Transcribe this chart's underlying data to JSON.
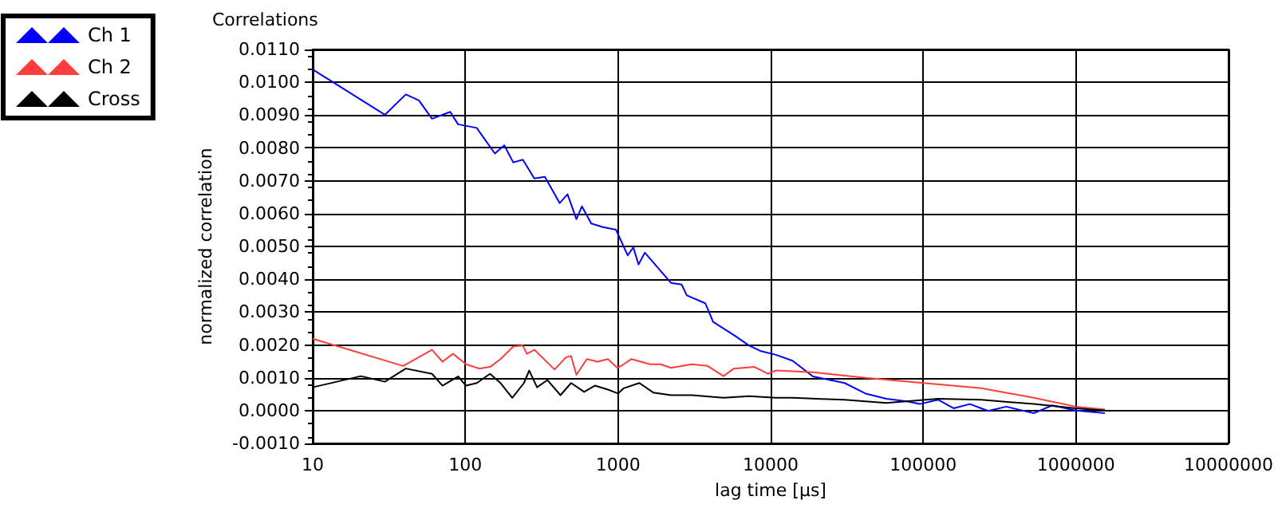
{
  "chart_data": {
    "type": "line",
    "title": "Correlations",
    "xlabel": "lag time [µs]",
    "ylabel": "normalized correlation",
    "log": "x",
    "grid": true,
    "legend": "top left",
    "marker": "none",
    "line_style": "solid",
    "xlim": [
      10,
      10000000
    ],
    "xticks": [
      10,
      100,
      1000,
      10000,
      100000,
      1000000,
      10000000
    ],
    "ylim": [
      -0.001,
      0.011
    ],
    "yticks": [
      {
        "value": -0.001,
        "label": "-0.0010"
      },
      {
        "value": 0,
        "label": "0.0000"
      },
      {
        "value": 0.001,
        "label": "0.0010"
      },
      {
        "value": 0.002,
        "label": "0.0020"
      },
      {
        "value": 0.003,
        "label": "0.0030"
      },
      {
        "value": 0.004,
        "label": "0.0040"
      },
      {
        "value": 0.005,
        "label": "0.0050"
      },
      {
        "value": 0.006,
        "label": "0.0060"
      },
      {
        "value": 0.007,
        "label": "0.0070"
      },
      {
        "value": 0.008,
        "label": "0.0080"
      },
      {
        "value": 0.009,
        "label": "0.0090"
      },
      {
        "value": 0.01,
        "label": "0.0100"
      },
      {
        "value": 0.011,
        "label": "0.0110"
      }
    ],
    "series": [
      {
        "name": "Ch 1",
        "color": "#0000ff",
        "x": [
          10,
          29.7,
          40.7,
          49.6,
          60.5,
          79.6,
          89.6,
          118.7,
          156,
          180,
          206,
          238,
          283,
          332,
          415,
          467,
          534,
          580,
          668,
          796,
          970,
          1157,
          1260,
          1364,
          1500,
          2222,
          2610,
          2824,
          3730,
          4200,
          5740,
          7240,
          8540,
          10800,
          13900,
          18900,
          30500,
          41800,
          57300,
          78000,
          95000,
          125000,
          158000,
          202000,
          266000,
          350000,
          530000,
          700000,
          1000000,
          1550000
        ],
        "values": [
          0.01039,
          0.00901,
          0.00963,
          0.00945,
          0.00889,
          0.0091,
          0.00872,
          0.00861,
          0.00783,
          0.00808,
          0.00756,
          0.00764,
          0.00707,
          0.00712,
          0.00632,
          0.00659,
          0.00583,
          0.00622,
          0.0057,
          0.00559,
          0.00551,
          0.00473,
          0.00497,
          0.00445,
          0.00481,
          0.00389,
          0.00384,
          0.00351,
          0.00327,
          0.0027,
          0.0023,
          0.00198,
          0.00182,
          0.0017,
          0.00152,
          0.00104,
          0.00084,
          0.00052,
          0.00036,
          0.00028,
          0.0002,
          0.00033,
          7e-05,
          0.0002,
          -1e-05,
          0.00012,
          -8e-05,
          0.00016,
          0,
          -8e-05
        ]
      },
      {
        "name": "Ch 2",
        "color": "#ff3c3c",
        "x": [
          10,
          39.1,
          60.5,
          70.8,
          83,
          101,
          123,
          145,
          170,
          206,
          238,
          253,
          284,
          384,
          456,
          493,
          534,
          625,
          734,
          860,
          990,
          1090,
          1225,
          1620,
          1900,
          2220,
          3040,
          3860,
          4910,
          5740,
          7840,
          9600,
          10800,
          18900,
          41800,
          100000,
          240000,
          530000,
          1000000,
          1550000
        ],
        "values": [
          0.00219,
          0.00136,
          0.00185,
          0.00149,
          0.00173,
          0.00141,
          0.00128,
          0.00133,
          0.00157,
          0.00195,
          0.00198,
          0.00173,
          0.00185,
          0.00125,
          0.00162,
          0.00166,
          0.00109,
          0.00157,
          0.00149,
          0.00157,
          0.0013,
          0.00141,
          0.00157,
          0.00141,
          0.00141,
          0.0013,
          0.00141,
          0.00136,
          0.00105,
          0.00128,
          0.00133,
          0.00112,
          0.00122,
          0.00117,
          0.001,
          0.00084,
          0.00068,
          0.00039,
          0.00012,
          3e-05
        ]
      },
      {
        "name": "Cross",
        "color": "#000000",
        "x": [
          10,
          20.7,
          29.7,
          40.7,
          60.5,
          70.8,
          89.6,
          101,
          119,
          145,
          170,
          203,
          242,
          262,
          295,
          345,
          420,
          493,
          600,
          705,
          860,
          1000,
          1090,
          1380,
          1700,
          2220,
          3040,
          4910,
          7240,
          10800,
          13900,
          30500,
          57300,
          125000,
          240000,
          530000,
          1000000,
          1550000
        ],
        "values": [
          0.00071,
          0.00105,
          0.00088,
          0.00128,
          0.00112,
          0.00076,
          0.00104,
          0.00076,
          0.00084,
          0.00112,
          0.00084,
          0.00039,
          0.00084,
          0.00122,
          0.00071,
          0.00093,
          0.00047,
          0.00084,
          0.00057,
          0.00076,
          0.00064,
          0.00052,
          0.00068,
          0.00084,
          0.00055,
          0.00047,
          0.00047,
          0.00039,
          0.00044,
          0.00039,
          0.00039,
          0.00033,
          0.00023,
          0.00036,
          0.00033,
          0.0002,
          7e-05,
          0
        ]
      }
    ]
  }
}
